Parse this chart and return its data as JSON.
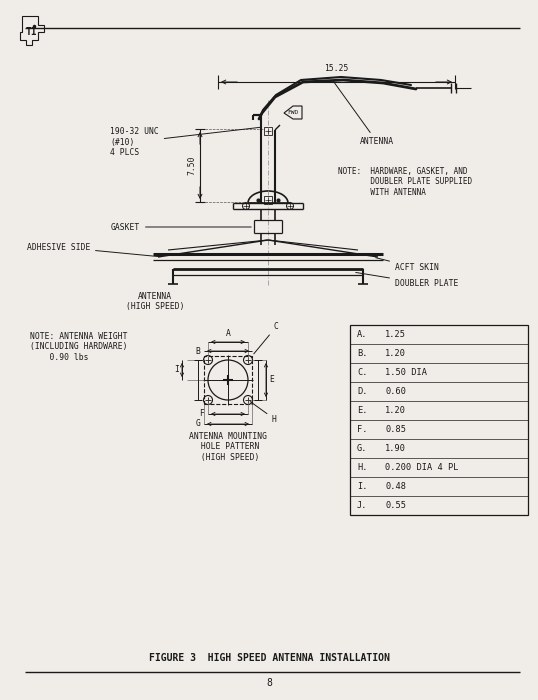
{
  "title": "FIGURE 3  HIGH SPEED ANTENNA INSTALLATION",
  "page_number": "8",
  "background_color": "#f0ede8",
  "line_color": "#1a1a1a",
  "dim_15_25": "15.25",
  "dim_7_50": "7.50",
  "label_190_32": "190-32 UNC\n(#10)\n4 PLCS",
  "label_antenna": "ANTENNA",
  "label_note": "NOTE:  HARDWARE, GASKET, AND\n       DOUBLER PLATE SUPPLIED\n       WITH ANTENNA",
  "label_gasket": "GASKET",
  "label_adhesive": "ADHESIVE SIDE",
  "label_acft_skin": "ACFT SKIN",
  "label_doubler": "DOUBLER PLATE",
  "label_antenna_hs": "ANTENNA\n(HIGH SPEED)",
  "label_note2": "NOTE: ANTENNA WEIGHT\n(INCLUDING HARDWARE)\n    0.90 lbs",
  "label_mounting": "ANTENNA MOUNTING\n HOLE PATTERN\n (HIGH SPEED)",
  "table_data": [
    [
      "A.",
      "1.25"
    ],
    [
      "B.",
      "1.20"
    ],
    [
      "C.",
      "1.50 DIA"
    ],
    [
      "D.",
      "0.60"
    ],
    [
      "E.",
      "1.20"
    ],
    [
      "F.",
      "0.85"
    ],
    [
      "G.",
      "1.90"
    ],
    [
      "H.",
      "0.200 DIA 4 PL"
    ],
    [
      "I.",
      "0.48"
    ],
    [
      "J.",
      "0.55"
    ]
  ],
  "font_size_main": 6.2,
  "font_size_small": 5.8,
  "font_size_title": 7.0
}
